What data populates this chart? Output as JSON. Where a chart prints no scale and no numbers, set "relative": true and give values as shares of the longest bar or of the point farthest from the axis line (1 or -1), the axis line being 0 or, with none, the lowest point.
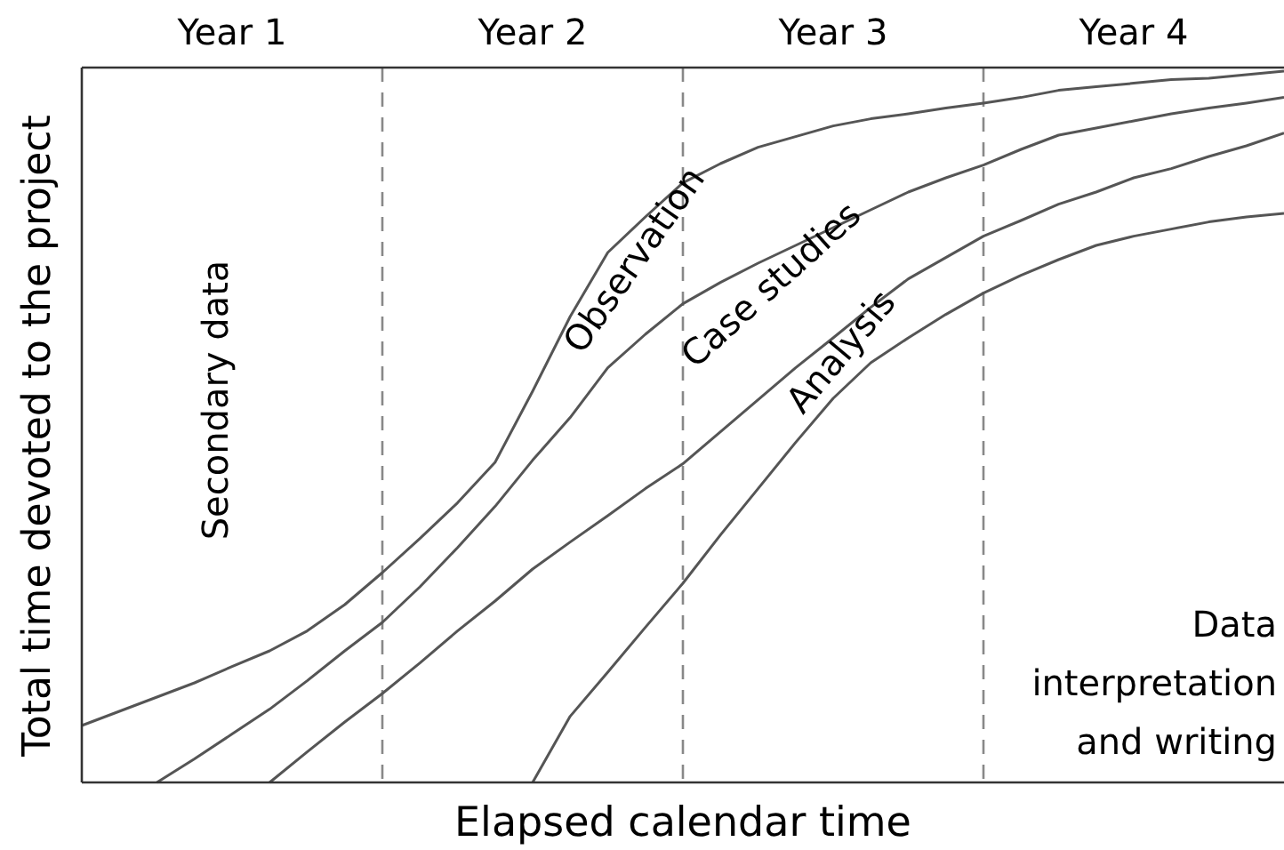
{
  "chart_data": {
    "type": "line",
    "relative": true,
    "xlabel": "Elapsed calendar time",
    "ylabel": "Total time devoted to the project",
    "categories": [
      null,
      null,
      null,
      null,
      "Year 1",
      null,
      null,
      null,
      null,
      null,
      null,
      null,
      "Year 2",
      null,
      null,
      null,
      null,
      null,
      null,
      null,
      "Year 3",
      null,
      null,
      null,
      null,
      null,
      null,
      null,
      "Year 4",
      null,
      null,
      null,
      null
    ],
    "series": [
      {
        "color": "#555555",
        "values": [
          0.08,
          0.1,
          0.12,
          0.14,
          0.163,
          0.185,
          0.213,
          0.25,
          0.295,
          0.343,
          0.393,
          0.45,
          0.55,
          0.655,
          0.745,
          0.795,
          0.843,
          0.87,
          0.893,
          0.908,
          0.923,
          0.933,
          0.94,
          0.948,
          0.955,
          0.963,
          0.973,
          0.978,
          0.983,
          0.988,
          0.99,
          0.995,
          1.0
        ]
      },
      {
        "color": "#555555",
        "values": [
          null,
          null,
          0,
          0.033,
          0.068,
          0.103,
          0.143,
          0.185,
          0.225,
          0.275,
          0.33,
          0.388,
          0.453,
          0.513,
          0.583,
          0.63,
          0.673,
          0.703,
          0.73,
          0.755,
          0.78,
          0.805,
          0.83,
          0.85,
          0.868,
          0.89,
          0.91,
          0.92,
          0.93,
          0.94,
          0.948,
          0.955,
          0.963
        ]
      },
      {
        "color": "#555555",
        "values": [
          null,
          null,
          null,
          null,
          null,
          0,
          0.043,
          0.085,
          0.125,
          0.168,
          0.213,
          0.255,
          0.3,
          0.338,
          0.375,
          0.413,
          0.448,
          0.493,
          0.538,
          0.583,
          0.625,
          0.668,
          0.708,
          0.738,
          0.768,
          0.79,
          0.813,
          0.83,
          0.85,
          0.863,
          0.88,
          0.895,
          0.913
        ]
      },
      {
        "color": "#555555",
        "values": [
          null,
          null,
          null,
          null,
          null,
          null,
          null,
          null,
          null,
          null,
          null,
          null,
          0,
          0.093,
          0.155,
          0.218,
          0.28,
          0.348,
          0.413,
          0.478,
          0.54,
          0.59,
          0.625,
          0.658,
          0.688,
          0.713,
          0.735,
          0.755,
          0.768,
          0.778,
          0.788,
          0.795,
          0.8
        ]
      }
    ],
    "annotations": [
      "Secondary data",
      "Observation",
      "Case studies",
      "Analysis",
      "Data interpretation and writing"
    ],
    "marker": "none",
    "line_style": "solid",
    "grid": "x"
  }
}
